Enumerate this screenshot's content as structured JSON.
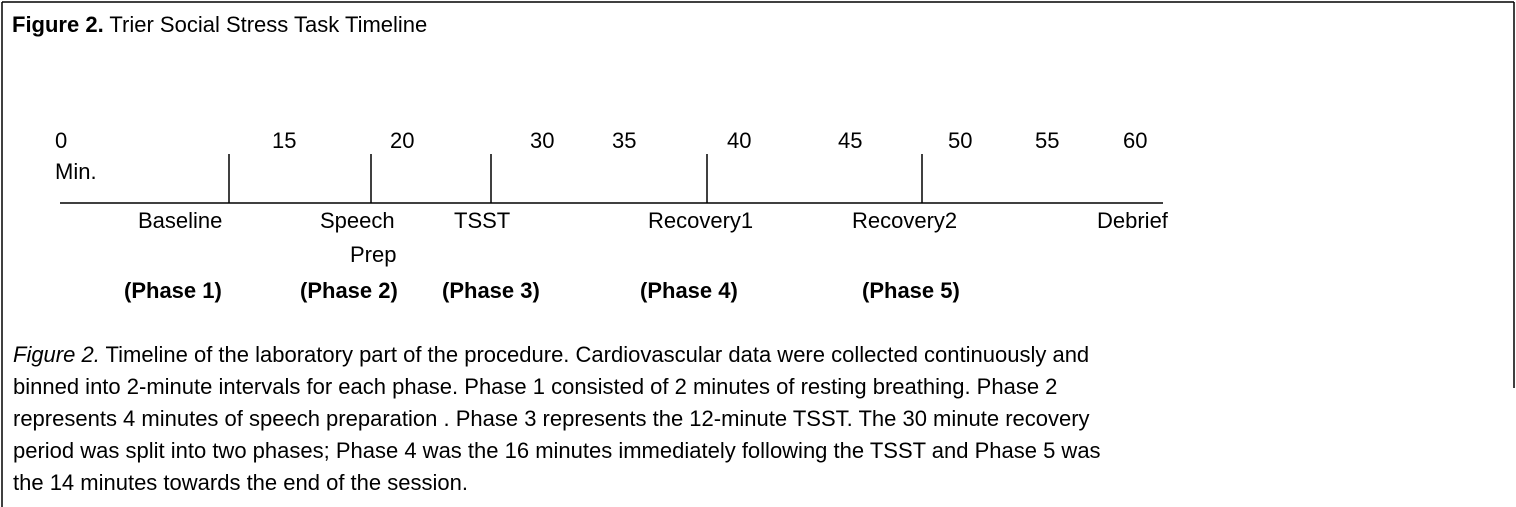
{
  "figure": {
    "title_label": "Figure 2.",
    "title": "Trier Social Stress Task Timeline",
    "minutes": [
      0,
      15,
      20,
      30,
      35,
      40,
      45,
      50,
      55,
      60
    ],
    "unit": "Min.",
    "segments": [
      "Baseline",
      "Speech",
      "Prep",
      "TSST",
      "Recovery1",
      "Recovery2",
      "Debrief"
    ],
    "phases": [
      "(Phase 1)",
      "(Phase 2)",
      "(Phase 3)",
      "(Phase 4)",
      "(Phase 5)"
    ],
    "caption_label": "Figure 2.",
    "caption_lines": [
      " Timeline of the laboratory part of the procedure.  Cardiovascular data were collected continuously and",
      "binned into 2-minute intervals for each phase.  Phase 1 consisted of 2 minutes of resting breathing. Phase 2",
      "represents 4 minutes of speech preparation .  Phase 3 represents the 12-minute TSST. The 30 minute recovery",
      "period was split into two phases; Phase 4 was the 16 minutes immediately following the TSST and Phase 5 was",
      "the 14 minutes towards the end of the session."
    ]
  }
}
